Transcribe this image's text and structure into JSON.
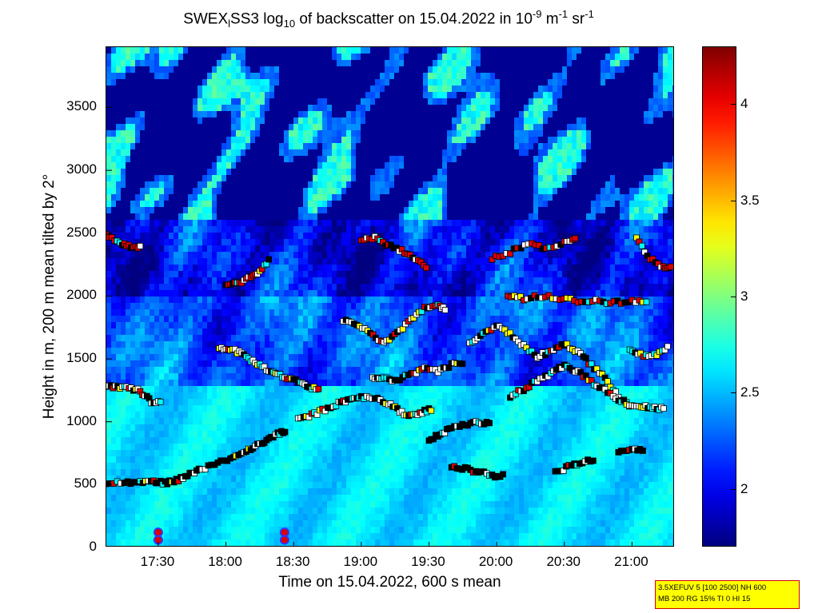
{
  "title": {
    "part1": "SWEX",
    "sub1": "l",
    "part2": "SS3 log",
    "sub2": "10",
    "part3": " of backscatter on 15.04.2022 in 10",
    "sup1": "-9",
    "part4": " m",
    "sup2": "-1",
    "part5": " sr",
    "sup3": "-1"
  },
  "info_box": {
    "line1": "3.5XEFUV 5 [100 2500] NH 600",
    "line2": "MB 200 RG 15% TI 0 HI 15"
  },
  "chart_data": {
    "type": "heatmap",
    "xlabel": "Time on 15.04.2022, 600 s mean",
    "ylabel": "Height in m, 200 m mean tilted by 2°",
    "x_ticks": [
      "17:30",
      "18:00",
      "18:30",
      "19:00",
      "19:30",
      "20:00",
      "20:30",
      "21:00"
    ],
    "x_tick_minutes": [
      1050,
      1080,
      1110,
      1140,
      1170,
      1200,
      1230,
      1260
    ],
    "x_range_minutes": [
      1027,
      1279
    ],
    "y_ticks": [
      "0",
      "500",
      "1000",
      "1500",
      "2000",
      "2500",
      "3000",
      "3500"
    ],
    "y_tick_values": [
      0,
      500,
      1000,
      1500,
      2000,
      2500,
      3000,
      3500
    ],
    "ylim": [
      0,
      3980
    ],
    "colorbar": {
      "ticks": [
        "2",
        "2.5",
        "3",
        "3.5",
        "4"
      ],
      "tick_values": [
        2,
        2.5,
        3,
        3.5,
        4
      ],
      "range": [
        1.7,
        4.3
      ],
      "colormap": "jet"
    },
    "layer_series": [
      {
        "points": [
          [
            1027,
            510
          ],
          [
            1035,
            510
          ],
          [
            1042,
            515
          ],
          [
            1048,
            525
          ],
          [
            1053,
            515
          ],
          [
            1058,
            530
          ],
          [
            1063,
            570
          ],
          [
            1068,
            620
          ],
          [
            1075,
            660
          ],
          [
            1082,
            700
          ],
          [
            1088,
            750
          ],
          [
            1093,
            800
          ],
          [
            1098,
            850
          ],
          [
            1103,
            900
          ],
          [
            1107,
            940
          ]
        ]
      },
      {
        "points": [
          [
            1027,
            1280
          ],
          [
            1032,
            1270
          ],
          [
            1037,
            1265
          ],
          [
            1042,
            1245
          ],
          [
            1047,
            1160
          ],
          [
            1052,
            1150
          ]
        ]
      },
      {
        "points": [
          [
            1077,
            1590
          ],
          [
            1082,
            1580
          ],
          [
            1087,
            1540
          ],
          [
            1092,
            1480
          ],
          [
            1097,
            1430
          ],
          [
            1102,
            1380
          ],
          [
            1107,
            1350
          ],
          [
            1112,
            1320
          ],
          [
            1117,
            1280
          ],
          [
            1122,
            1250
          ]
        ]
      },
      {
        "points": [
          [
            1112,
            1030
          ],
          [
            1118,
            1050
          ],
          [
            1124,
            1100
          ],
          [
            1130,
            1150
          ],
          [
            1135,
            1180
          ],
          [
            1140,
            1200
          ],
          [
            1146,
            1190
          ],
          [
            1152,
            1150
          ],
          [
            1157,
            1080
          ],
          [
            1162,
            1050
          ],
          [
            1167,
            1080
          ],
          [
            1172,
            1100
          ]
        ]
      },
      {
        "points": [
          [
            1145,
            1350
          ],
          [
            1150,
            1340
          ],
          [
            1156,
            1330
          ],
          [
            1162,
            1380
          ],
          [
            1168,
            1420
          ],
          [
            1174,
            1400
          ],
          [
            1180,
            1450
          ],
          [
            1186,
            1480
          ]
        ]
      },
      {
        "points": [
          [
            1132,
            1800
          ],
          [
            1138,
            1780
          ],
          [
            1144,
            1700
          ],
          [
            1150,
            1620
          ],
          [
            1156,
            1700
          ],
          [
            1162,
            1820
          ],
          [
            1168,
            1900
          ],
          [
            1174,
            1930
          ],
          [
            1178,
            1880
          ]
        ]
      },
      {
        "points": [
          [
            1170,
            850
          ],
          [
            1175,
            900
          ],
          [
            1180,
            950
          ],
          [
            1186,
            980
          ],
          [
            1192,
            990
          ],
          [
            1198,
            980
          ]
        ]
      },
      {
        "points": [
          [
            1188,
            1620
          ],
          [
            1194,
            1700
          ],
          [
            1200,
            1760
          ],
          [
            1206,
            1700
          ],
          [
            1212,
            1600
          ],
          [
            1218,
            1520
          ],
          [
            1224,
            1560
          ],
          [
            1230,
            1620
          ],
          [
            1236,
            1560
          ],
          [
            1242,
            1450
          ],
          [
            1248,
            1350
          ],
          [
            1254,
            1200
          ],
          [
            1260,
            1100
          ]
        ]
      },
      {
        "points": [
          [
            1206,
            1200
          ],
          [
            1212,
            1260
          ],
          [
            1218,
            1320
          ],
          [
            1224,
            1380
          ],
          [
            1230,
            1450
          ],
          [
            1236,
            1400
          ],
          [
            1242,
            1320
          ],
          [
            1248,
            1250
          ],
          [
            1254,
            1180
          ],
          [
            1260,
            1130
          ],
          [
            1265,
            1120
          ],
          [
            1270,
            1110
          ],
          [
            1275,
            1100
          ]
        ]
      },
      {
        "points": [
          [
            1205,
            2000
          ],
          [
            1212,
            1980
          ],
          [
            1220,
            2000
          ],
          [
            1228,
            1980
          ],
          [
            1236,
            1960
          ],
          [
            1244,
            1960
          ],
          [
            1252,
            1950
          ],
          [
            1260,
            1960
          ],
          [
            1268,
            1960
          ]
        ]
      },
      {
        "points": [
          [
            1180,
            640
          ],
          [
            1186,
            630
          ],
          [
            1192,
            600
          ],
          [
            1198,
            570
          ],
          [
            1204,
            580
          ]
        ]
      },
      {
        "points": [
          [
            1226,
            600
          ],
          [
            1232,
            640
          ],
          [
            1238,
            680
          ],
          [
            1244,
            700
          ]
        ]
      },
      {
        "points": [
          [
            1140,
            2440
          ],
          [
            1146,
            2460
          ],
          [
            1152,
            2400
          ],
          [
            1158,
            2360
          ],
          [
            1164,
            2300
          ],
          [
            1170,
            2200
          ]
        ]
      },
      {
        "points": [
          [
            1027,
            2480
          ],
          [
            1033,
            2420
          ],
          [
            1038,
            2390
          ],
          [
            1043,
            2400
          ]
        ]
      },
      {
        "points": [
          [
            1080,
            2090
          ],
          [
            1085,
            2100
          ],
          [
            1090,
            2140
          ],
          [
            1095,
            2200
          ],
          [
            1100,
            2300
          ]
        ]
      },
      {
        "points": [
          [
            1198,
            2300
          ],
          [
            1206,
            2350
          ],
          [
            1214,
            2420
          ],
          [
            1222,
            2380
          ],
          [
            1230,
            2420
          ],
          [
            1236,
            2480
          ]
        ]
      },
      {
        "points": [
          [
            1262,
            2450
          ],
          [
            1268,
            2300
          ],
          [
            1274,
            2230
          ],
          [
            1278,
            2230
          ]
        ]
      },
      {
        "points": [
          [
            1259,
            1560
          ],
          [
            1265,
            1530
          ],
          [
            1271,
            1540
          ],
          [
            1277,
            1600
          ]
        ]
      },
      {
        "points": [
          [
            1254,
            750
          ],
          [
            1260,
            780
          ],
          [
            1266,
            760
          ]
        ]
      }
    ],
    "markers": [
      {
        "x": 1050,
        "y": 120
      },
      {
        "x": 1050,
        "y": 60
      },
      {
        "x": 1106,
        "y": 120
      },
      {
        "x": 1106,
        "y": 60
      }
    ]
  }
}
